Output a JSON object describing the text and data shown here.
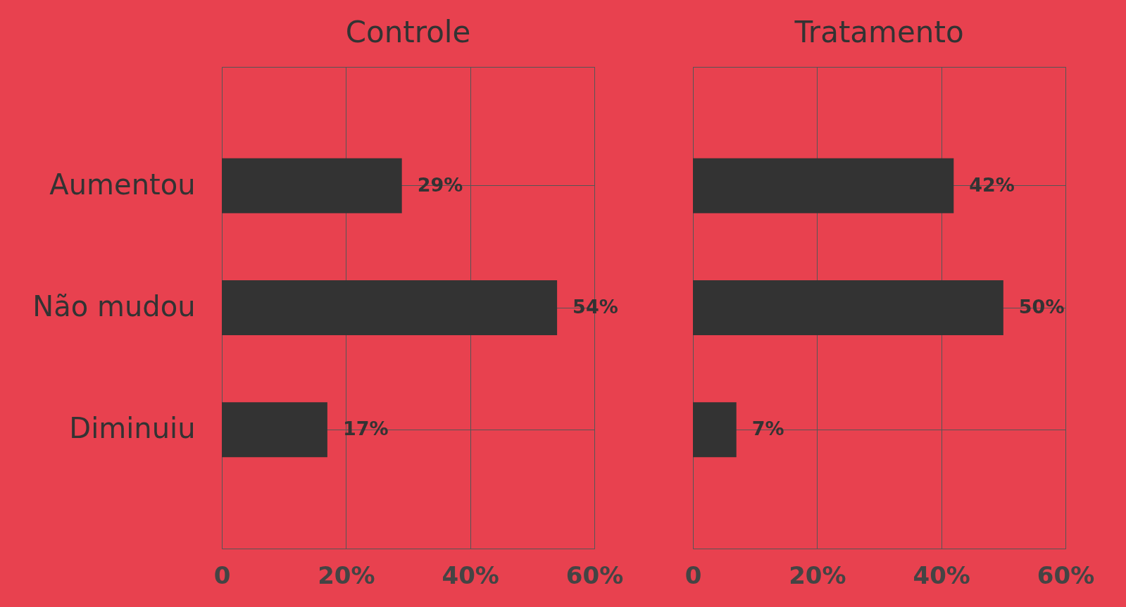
{
  "chart_data": [
    {
      "type": "bar",
      "orientation": "horizontal",
      "title": "Controle",
      "categories": [
        "Aumentou",
        "Não mudou",
        "Diminuiu"
      ],
      "values": [
        29,
        54,
        17
      ],
      "value_labels": [
        "29%",
        "54%",
        "17%"
      ],
      "color": "#333333",
      "xlim": [
        0,
        60
      ],
      "xticks": [
        0,
        {
          "value": 20,
          "label": "20%"
        },
        {
          "value": 40,
          "label": "40%"
        },
        {
          "value": 60,
          "label": "60%"
        }
      ],
      "grid": true
    },
    {
      "type": "bar",
      "orientation": "horizontal",
      "title": "Tratamento",
      "categories": [
        null,
        null,
        null
      ],
      "values": [
        42,
        50,
        7
      ],
      "value_labels": [
        "42%",
        "50%",
        "7%"
      ],
      "color": "#333333",
      "xlim": [
        0,
        60
      ],
      "xticks": [
        0,
        {
          "value": 20,
          "label": "20%"
        },
        {
          "value": 40,
          "label": "40%"
        },
        {
          "value": 60,
          "label": "60%"
        }
      ],
      "grid": true,
      "tick_labels": "x"
    }
  ]
}
